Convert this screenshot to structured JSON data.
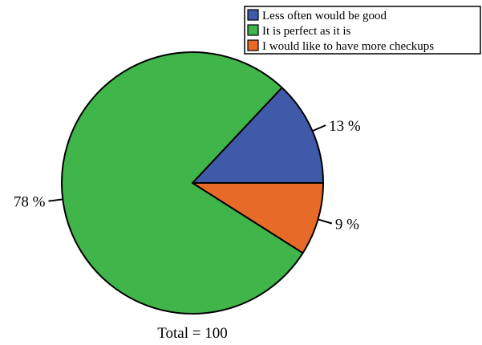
{
  "chart_data": {
    "type": "pie",
    "categories": [
      "Less often would be good",
      "It is perfect as it is",
      "I would like to have more checkups"
    ],
    "values": [
      13,
      78,
      9
    ],
    "value_labels": [
      "13 %",
      "78 %",
      "9 %"
    ],
    "colors": [
      "#3f5aa8",
      "#3fb54a",
      "#e86a28"
    ],
    "total_label": "Total = 100",
    "legend_position": "top-right",
    "start_angle_deg": 0,
    "direction": "counterclockwise"
  }
}
